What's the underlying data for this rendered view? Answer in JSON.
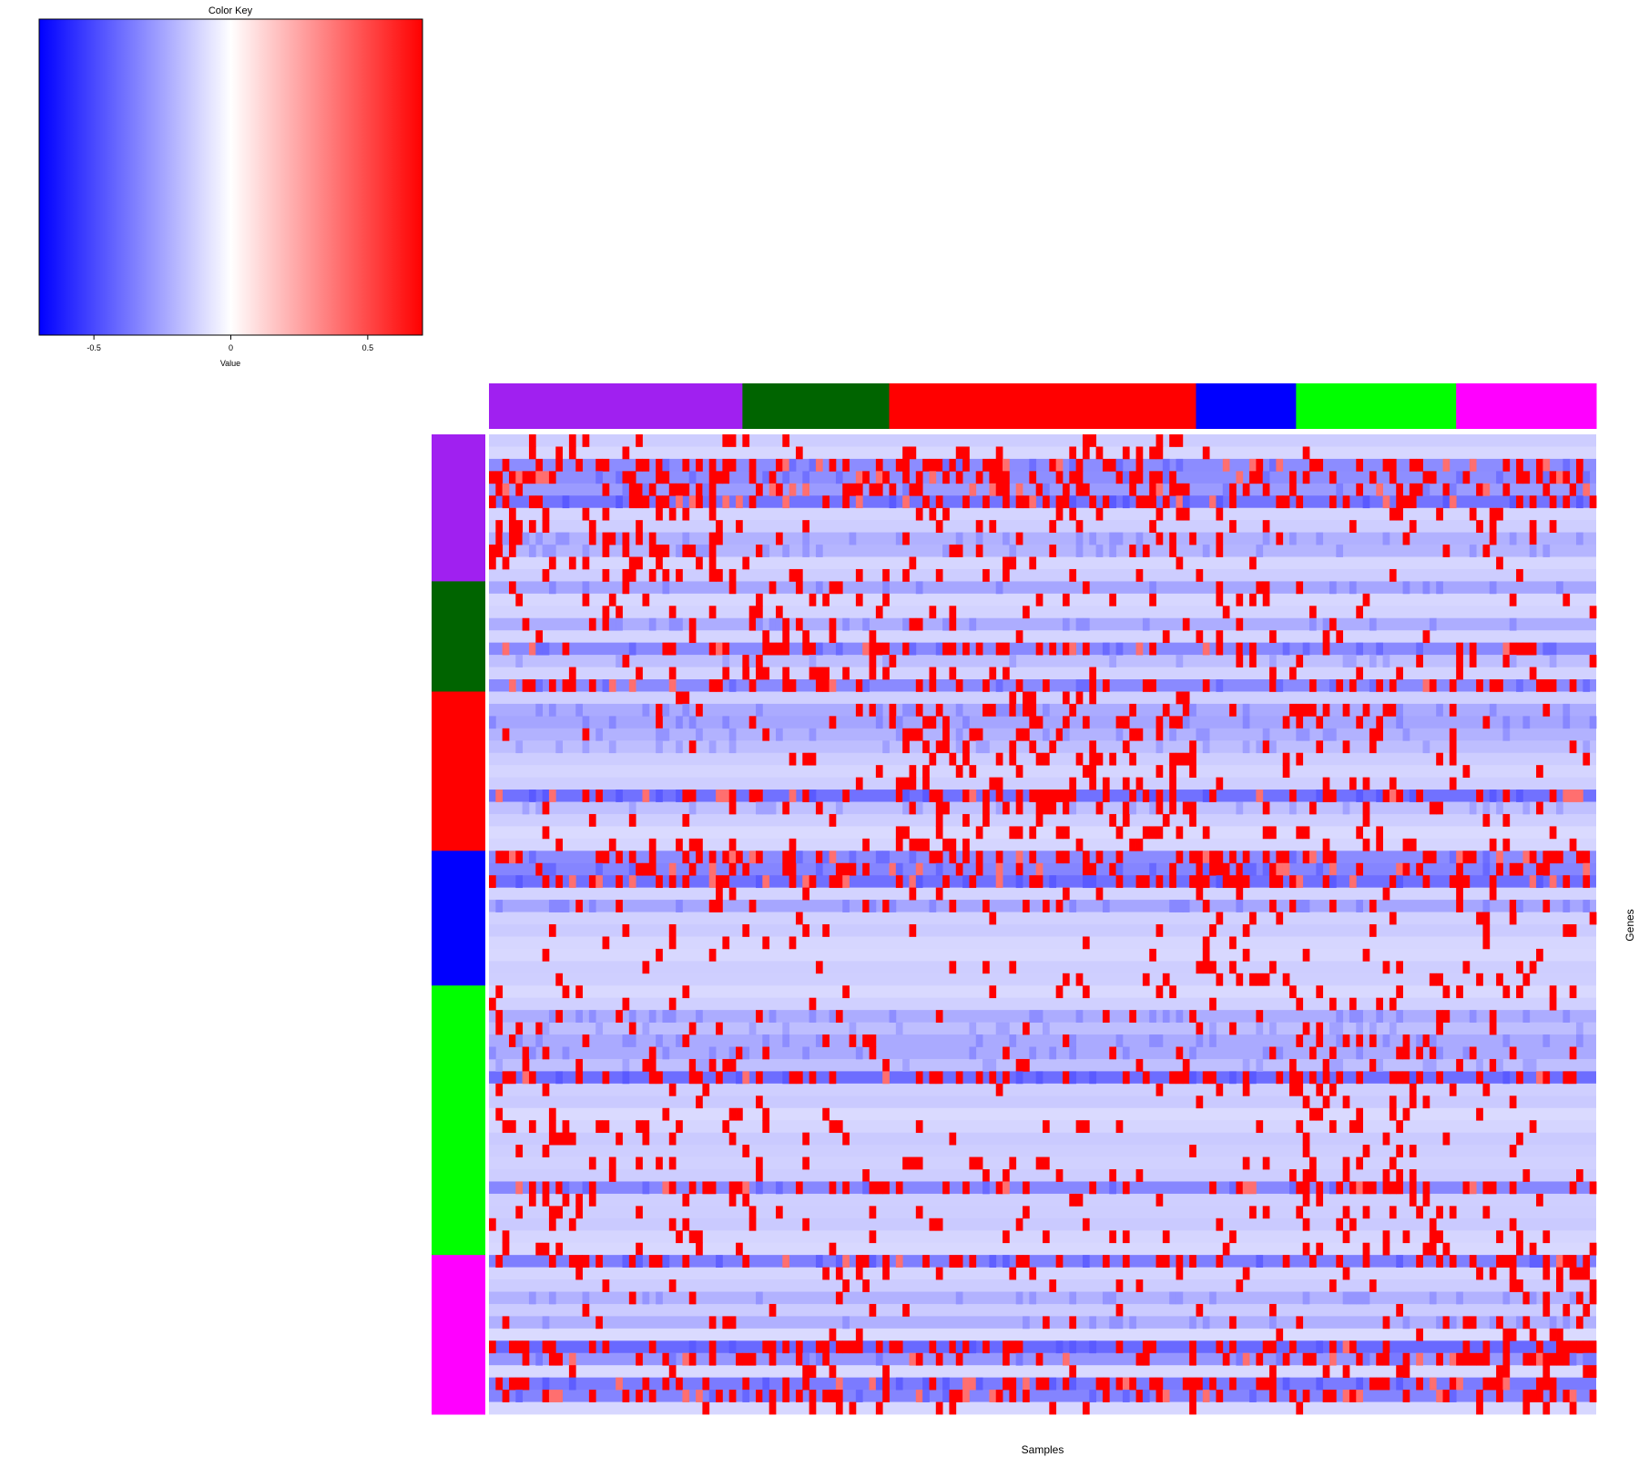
{
  "chart_data": [
    {
      "type": "heatmap",
      "title": "",
      "xlabel": "Samples",
      "ylabel": "Genes",
      "column_groups": [
        {
          "color": "#a020f0",
          "samples": 38
        },
        {
          "color": "#006400",
          "samples": 22
        },
        {
          "color": "#ff0000",
          "samples": 46
        },
        {
          "color": "#0000ff",
          "samples": 15
        },
        {
          "color": "#00ff00",
          "samples": 24
        },
        {
          "color": "#ff00ff",
          "samples": 21
        }
      ],
      "row_groups": [
        {
          "color": "#a020f0",
          "genes": 12
        },
        {
          "color": "#006400",
          "genes": 9
        },
        {
          "color": "#ff0000",
          "genes": 13
        },
        {
          "color": "#0000ff",
          "genes": 11
        },
        {
          "color": "#00ff00",
          "genes": 22
        },
        {
          "color": "#ff00ff",
          "genes": 13
        }
      ],
      "value_range": [
        -0.7,
        0.7
      ],
      "color_scale": [
        "#0000ff",
        "#ffffff",
        "#ff0000"
      ],
      "note_values": "Cell values are not readable individually; the dense matrix is rendered as a procedurally generated approximation of the pattern."
    },
    {
      "type": "color-key",
      "title": "Color Key",
      "xlabel": "Value",
      "ticks": [
        "-0.5",
        "0",
        "0.5"
      ],
      "tick_values": [
        -0.5,
        0,
        0.5
      ],
      "xlim": [
        -0.7,
        0.7
      ]
    }
  ]
}
